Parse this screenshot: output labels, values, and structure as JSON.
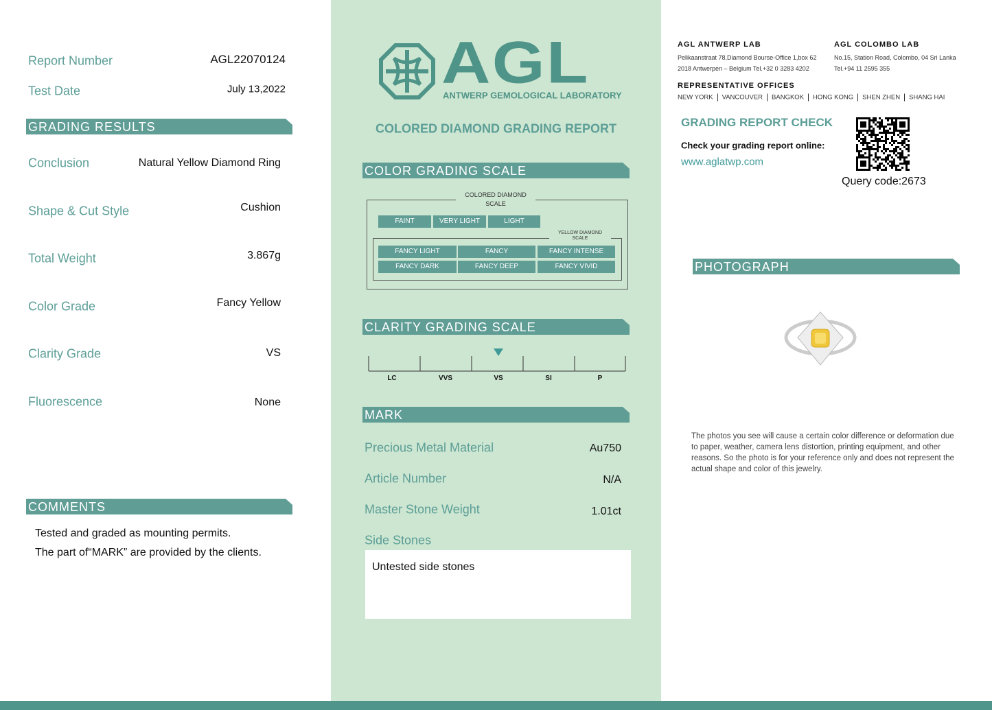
{
  "left": {
    "report_number": {
      "label": "Report Number",
      "value": "AGL22070124"
    },
    "test_date": {
      "label": "Test Date",
      "value": "July 13,2022"
    },
    "grading_results": {
      "title": "GRADING RESULTS",
      "rows": [
        [
          "Conclusion",
          "Natural Yellow Diamond Ring"
        ],
        [
          "Shape & Cut Style",
          "Cushion"
        ],
        [
          "Total Weight",
          "3.867g"
        ],
        [
          "Color Grade",
          "Fancy Yellow"
        ],
        [
          "Clarity Grade",
          "VS"
        ],
        [
          "Fluorescence",
          "None"
        ]
      ]
    },
    "comments": {
      "title": "COMMENTS",
      "lines": [
        "Tested and graded as mounting permits.",
        "The part of“MARK” are provided by the clients."
      ]
    }
  },
  "center": {
    "logo": "AGL",
    "logo_subtitle": "ANTWERP GEMOLOGICAL LABORATORY",
    "report_title": "COLORED DIAMOND GRADING REPORT",
    "color_scale": {
      "title": "COLOR GRADING SCALE",
      "box_label": [
        "COLORED DIAMOND",
        "SCALE"
      ],
      "row1": [
        "FAINT",
        "VERY LIGHT",
        "LIGHT"
      ],
      "yellow_label": [
        "YELLOW DIAMOND",
        "SCALE"
      ],
      "row2": [
        "FANCY LIGHT",
        "FANCY",
        "FANCY INTENSE"
      ],
      "row3": [
        "FANCY DARK",
        "FANCY DEEP",
        "FANCY VIVID"
      ]
    },
    "clarity_scale": {
      "title": "CLARITY GRADING SCALE",
      "grades": [
        "LC",
        "VVS",
        "VS",
        "SI",
        "P"
      ],
      "selected": "VS"
    },
    "mark": {
      "title": "MARK",
      "rows": [
        [
          "Precious Metal Material",
          "Au750"
        ],
        [
          "Article Number",
          "N/A"
        ],
        [
          "Master Stone Weight",
          "1.01ct"
        ]
      ],
      "side_stones_label": "Side Stones",
      "side_stones_value": "Untested side stones"
    }
  },
  "right": {
    "antwerp": {
      "name": "AGL ANTWERP LAB",
      "lines": [
        "Pelikaanstraat 78,Diamond Bourse-Office 1,box 62",
        "2018 Antwerpen – Belgium  Tel.+32 0 3283 4202"
      ]
    },
    "colombo": {
      "name": "AGL COLOMBO LAB",
      "lines": [
        "No.15, Station Road, Colombo, 04 Sri Lanka",
        "Tel.+94 11 2595 355"
      ]
    },
    "offices": {
      "title": "REPRESENTATIVE OFFICES",
      "cities": [
        "NEW YORK",
        "VANCOUVER",
        "BANGKOK",
        "HONG KONG",
        "SHEN ZHEN",
        "SHANG HAI"
      ]
    },
    "check": {
      "title": "GRADING REPORT CHECK",
      "prompt": "Check your grading report online:",
      "url": "www.aglatwp.com",
      "query_code": "Query code:2673"
    },
    "photograph": {
      "title": "PHOTOGRAPH",
      "disclaimer": [
        "The photos you see will cause a certain color difference or deformation due",
        "to paper, weather, camera lens distortion, printing equipment, and other",
        "reasons. So the photo is for your reference only and does not represent the",
        "actual shape and color of this jewelry."
      ]
    }
  }
}
